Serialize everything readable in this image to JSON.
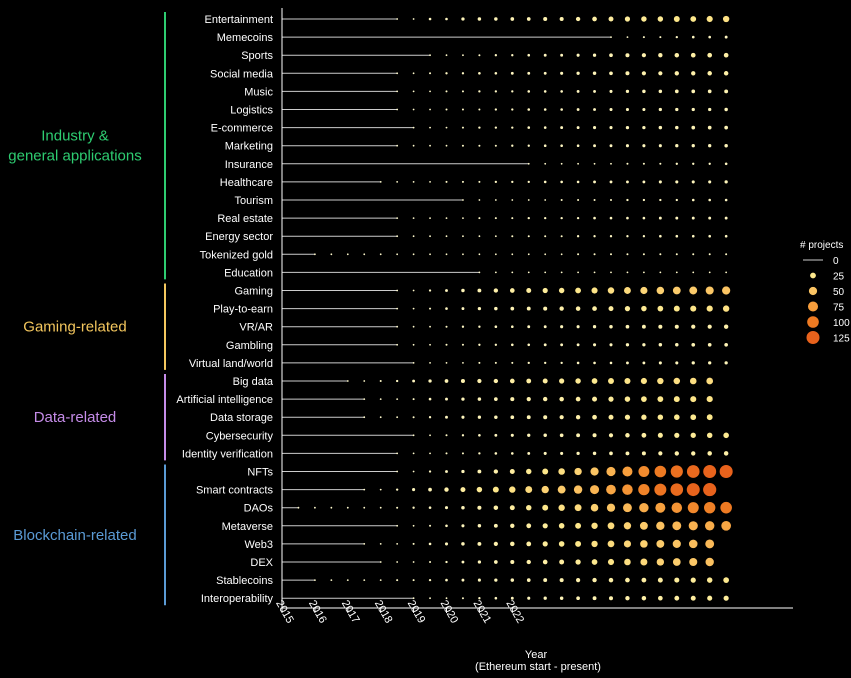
{
  "chart_data": {
    "type": "scatter",
    "xlabel": "Year",
    "xlabel_sub": "(Ethereum start - present)",
    "x_ticks": [
      "2015",
      "2016",
      "2017",
      "2018",
      "2019",
      "2020",
      "2021",
      "2022"
    ],
    "legend": {
      "title": "# projects",
      "entries": [
        {
          "label": "0",
          "value": 0
        },
        {
          "label": "25",
          "value": 25
        },
        {
          "label": "50",
          "value": 50
        },
        {
          "label": "75",
          "value": 75
        },
        {
          "label": "100",
          "value": 100
        },
        {
          "label": "125",
          "value": 125
        }
      ]
    },
    "colors": {
      "background": "#000000",
      "axis": "#ffffff",
      "text": "#ffffff",
      "line": "#cccccc",
      "scale": [
        "#fffbd0",
        "#fde88c",
        "#fbc463",
        "#f79e3c",
        "#ee7a22",
        "#e8621c"
      ],
      "industry": "#2ecc71",
      "gaming": "#f4c75e",
      "data": "#c58ce8",
      "blockchain": "#5b9bd5"
    },
    "groups": [
      {
        "label": "Industry &\ngeneral applications",
        "color_key": "industry",
        "first_row": 0,
        "last_row": 14
      },
      {
        "label": "Gaming-related",
        "color_key": "gaming",
        "first_row": 15,
        "last_row": 19
      },
      {
        "label": "Data-related",
        "color_key": "data",
        "first_row": 20,
        "last_row": 24
      },
      {
        "label": "Blockchain-related",
        "color_key": "blockchain",
        "first_row": 25,
        "last_row": 32
      }
    ],
    "categories": [
      {
        "name": "Entertainment",
        "start": 7,
        "values": [
          1,
          1,
          5,
          5,
          8,
          9,
          9,
          10,
          10,
          12,
          12,
          14,
          16,
          18,
          20,
          22,
          22,
          26,
          25,
          28,
          30
        ]
      },
      {
        "name": "Memecoins",
        "start": 20,
        "values": [
          1,
          2,
          3,
          3,
          4,
          5,
          5,
          6
        ]
      },
      {
        "name": "Sports",
        "start": 9,
        "values": [
          1,
          2,
          2,
          3,
          4,
          4,
          5,
          6,
          6,
          7,
          8,
          10,
          12,
          13,
          14,
          15,
          16,
          16,
          16
        ]
      },
      {
        "name": "Social media",
        "start": 7,
        "values": [
          1,
          2,
          3,
          4,
          4,
          5,
          5,
          6,
          6,
          6,
          7,
          8,
          9,
          10,
          12,
          13,
          13,
          14,
          14,
          15,
          15
        ]
      },
      {
        "name": "Music",
        "start": 7,
        "values": [
          1,
          1,
          2,
          3,
          3,
          4,
          4,
          4,
          5,
          5,
          5,
          6,
          6,
          7,
          8,
          9,
          9,
          10,
          10,
          10,
          11
        ]
      },
      {
        "name": "Logistics",
        "start": 7,
        "values": [
          1,
          1,
          2,
          3,
          3,
          3,
          4,
          4,
          5,
          5,
          5,
          6,
          6,
          7,
          7,
          7,
          8,
          8,
          8,
          8,
          9
        ]
      },
      {
        "name": "E-commerce",
        "start": 8,
        "values": [
          1,
          2,
          2,
          3,
          4,
          4,
          4,
          5,
          5,
          6,
          6,
          7,
          7,
          8,
          8,
          9,
          9,
          10,
          10,
          10
        ]
      },
      {
        "name": "Marketing",
        "start": 7,
        "values": [
          1,
          1,
          2,
          2,
          3,
          3,
          3,
          4,
          4,
          5,
          5,
          5,
          6,
          6,
          7,
          7,
          7,
          8,
          8,
          8,
          9
        ]
      },
      {
        "name": "Insurance",
        "start": 15,
        "values": [
          1,
          1,
          1,
          2,
          2,
          2,
          3,
          3,
          3,
          4,
          4,
          4,
          5
        ]
      },
      {
        "name": "Healthcare",
        "start": 6,
        "values": [
          1,
          1,
          2,
          2,
          3,
          3,
          3,
          4,
          4,
          4,
          5,
          5,
          5,
          6,
          6,
          6,
          6,
          7,
          7,
          7,
          7,
          8
        ]
      },
      {
        "name": "Tourism",
        "start": 11,
        "values": [
          1,
          1,
          1,
          2,
          2,
          2,
          3,
          3,
          3,
          3,
          4,
          4,
          4,
          4,
          5,
          5,
          5
        ]
      },
      {
        "name": "Real estate",
        "start": 7,
        "values": [
          1,
          1,
          2,
          2,
          2,
          3,
          3,
          3,
          4,
          4,
          4,
          4,
          5,
          5,
          5,
          5,
          6,
          6,
          6,
          6,
          6
        ]
      },
      {
        "name": "Energy sector",
        "start": 7,
        "values": [
          1,
          1,
          1,
          2,
          2,
          2,
          2,
          3,
          3,
          3,
          3,
          4,
          4,
          4,
          4,
          4,
          5,
          5,
          5,
          5,
          5
        ]
      },
      {
        "name": "Tokenized gold",
        "start": 2,
        "values": [
          1,
          1,
          1,
          1,
          1,
          1,
          2,
          2,
          2,
          2,
          2,
          2,
          2,
          2,
          2,
          2,
          3,
          3,
          3,
          3,
          3,
          3,
          3,
          3,
          3,
          3
        ]
      },
      {
        "name": "Education",
        "start": 12,
        "values": [
          1,
          1,
          1,
          1,
          1,
          1,
          1,
          2,
          2,
          2,
          2,
          2,
          2,
          2,
          2,
          2
        ]
      },
      {
        "name": "Gaming",
        "start": 7,
        "values": [
          1,
          2,
          4,
          6,
          9,
          11,
          14,
          16,
          18,
          20,
          22,
          25,
          28,
          31,
          35,
          38,
          42,
          45,
          46,
          48,
          50
        ]
      },
      {
        "name": "Play-to-earn",
        "start": 7,
        "values": [
          1,
          2,
          3,
          5,
          6,
          8,
          9,
          10,
          11,
          12,
          14,
          15,
          16,
          18,
          20,
          22,
          24,
          26,
          27,
          28,
          30
        ]
      },
      {
        "name": "VR/AR",
        "start": 7,
        "values": [
          1,
          1,
          2,
          3,
          4,
          4,
          5,
          5,
          6,
          6,
          7,
          7,
          8,
          9,
          10,
          11,
          12,
          12,
          13,
          13,
          14
        ]
      },
      {
        "name": "Gambling",
        "start": 7,
        "values": [
          1,
          1,
          2,
          3,
          3,
          4,
          4,
          5,
          5,
          6,
          6,
          6,
          7,
          7,
          8,
          8,
          9,
          9,
          10,
          10,
          10
        ]
      },
      {
        "name": "Virtual land/world",
        "start": 8,
        "values": [
          1,
          1,
          2,
          2,
          3,
          3,
          3,
          4,
          4,
          4,
          5,
          5,
          5,
          6,
          6,
          7,
          7,
          8,
          8,
          8
        ]
      },
      {
        "name": "Big data",
        "start": 4,
        "values": [
          1,
          2,
          3,
          4,
          6,
          8,
          10,
          12,
          13,
          14,
          16,
          17,
          18,
          20,
          22,
          24,
          26,
          27,
          28,
          30,
          31,
          32,
          33
        ]
      },
      {
        "name": "Artificial intelligence",
        "start": 5,
        "values": [
          1,
          1,
          2,
          3,
          5,
          6,
          8,
          9,
          10,
          12,
          13,
          14,
          15,
          16,
          18,
          20,
          22,
          24,
          25,
          26,
          27,
          28
        ]
      },
      {
        "name": "Data storage",
        "start": 5,
        "values": [
          1,
          1,
          2,
          3,
          4,
          6,
          7,
          8,
          9,
          10,
          11,
          12,
          13,
          14,
          16,
          18,
          20,
          21,
          22,
          23,
          24,
          25
        ]
      },
      {
        "name": "Cybersecurity",
        "start": 8,
        "values": [
          1,
          2,
          3,
          4,
          5,
          6,
          7,
          8,
          9,
          10,
          11,
          12,
          13,
          15,
          17,
          19,
          20,
          21,
          22,
          23
        ]
      },
      {
        "name": "Identity verification",
        "start": 7,
        "values": [
          1,
          1,
          2,
          3,
          3,
          4,
          5,
          5,
          6,
          7,
          7,
          8,
          9,
          10,
          11,
          12,
          13,
          14,
          14,
          15,
          15
        ]
      },
      {
        "name": "NFTs",
        "start": 7,
        "values": [
          1,
          2,
          4,
          6,
          8,
          11,
          14,
          18,
          22,
          26,
          32,
          40,
          50,
          62,
          75,
          88,
          100,
          110,
          118,
          124,
          126
        ]
      },
      {
        "name": "Smart contracts",
        "start": 5,
        "values": [
          1,
          2,
          4,
          7,
          10,
          14,
          18,
          22,
          26,
          30,
          35,
          40,
          46,
          52,
          60,
          70,
          82,
          94,
          106,
          116,
          124,
          128
        ]
      },
      {
        "name": "DAOs",
        "start": 1,
        "values": [
          1,
          1,
          1,
          1,
          2,
          2,
          3,
          4,
          5,
          7,
          9,
          12,
          15,
          18,
          22,
          26,
          30,
          35,
          42,
          50,
          58,
          66,
          74,
          82,
          90,
          96,
          100
        ]
      },
      {
        "name": "Metaverse",
        "start": 7,
        "values": [
          1,
          2,
          3,
          5,
          7,
          9,
          11,
          14,
          17,
          20,
          23,
          26,
          30,
          34,
          40,
          46,
          52,
          58,
          62,
          66,
          70
        ]
      },
      {
        "name": "Web3",
        "start": 5,
        "values": [
          1,
          1,
          2,
          3,
          5,
          7,
          9,
          11,
          13,
          15,
          17,
          20,
          23,
          26,
          30,
          34,
          38,
          42,
          46,
          50,
          54,
          58
        ]
      },
      {
        "name": "DEX",
        "start": 6,
        "values": [
          1,
          1,
          2,
          3,
          4,
          6,
          8,
          10,
          12,
          14,
          16,
          18,
          21,
          24,
          28,
          32,
          36,
          40,
          44,
          48,
          52
        ]
      },
      {
        "name": "Stablecoins",
        "start": 2,
        "values": [
          1,
          1,
          1,
          2,
          2,
          3,
          3,
          4,
          5,
          6,
          7,
          8,
          9,
          10,
          11,
          12,
          13,
          14,
          15,
          16,
          17,
          18,
          19,
          20,
          22,
          24
        ]
      },
      {
        "name": "Interoperability",
        "start": 8,
        "values": [
          1,
          1,
          2,
          3,
          4,
          5,
          6,
          7,
          8,
          9,
          10,
          11,
          12,
          14,
          15,
          16,
          17,
          18,
          19,
          20
        ]
      }
    ]
  }
}
